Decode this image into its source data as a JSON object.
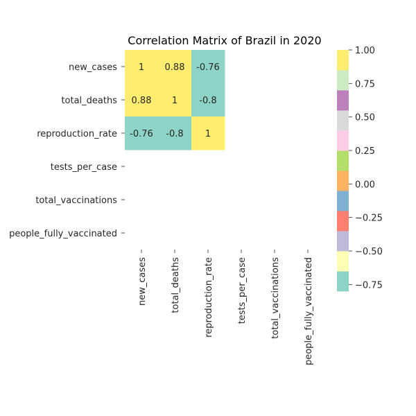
{
  "chart_data": {
    "type": "heatmap",
    "title": "Correlation Matrix of Brazil in 2020",
    "row_labels": [
      "new_cases",
      "total_deaths",
      "reproduction_rate",
      "tests_per_case",
      "total_vaccinations",
      "people_fully_vaccinated"
    ],
    "col_labels": [
      "new_cases",
      "total_deaths",
      "reproduction_rate",
      "tests_per_case",
      "total_vaccinations",
      "people_fully_vaccinated"
    ],
    "values": [
      [
        1,
        0.88,
        -0.76,
        null,
        null,
        null
      ],
      [
        0.88,
        1,
        -0.8,
        null,
        null,
        null
      ],
      [
        -0.76,
        -0.8,
        1,
        null,
        null,
        null
      ],
      [
        null,
        null,
        null,
        null,
        null,
        null
      ],
      [
        null,
        null,
        null,
        null,
        null,
        null
      ],
      [
        null,
        null,
        null,
        null,
        null,
        null
      ]
    ],
    "annotations": [
      [
        "1",
        "0.88",
        "-0.76",
        "",
        "",
        ""
      ],
      [
        "0.88",
        "1",
        "-0.8",
        "",
        "",
        ""
      ],
      [
        "-0.76",
        "-0.8",
        "1",
        "",
        "",
        ""
      ],
      [
        "",
        "",
        "",
        "",
        "",
        ""
      ],
      [
        "",
        "",
        "",
        "",
        "",
        ""
      ],
      [
        "",
        "",
        "",
        "",
        "",
        ""
      ]
    ],
    "colorbar": {
      "vmin": -0.8,
      "vmax": 1.0,
      "ticks": [
        1.0,
        0.75,
        0.5,
        0.25,
        0.0,
        -0.25,
        -0.5,
        -0.75
      ],
      "tick_labels": [
        "1.00",
        "0.75",
        "0.50",
        "0.25",
        "0.00",
        "−0.25",
        "−0.50",
        "−0.75"
      ],
      "palette": [
        "#8dd3c7",
        "#ffffb3",
        "#bebada",
        "#fb8072",
        "#80b1d3",
        "#fdb462",
        "#b3de69",
        "#fccde5",
        "#d9d9d9",
        "#bc80bd",
        "#ccebc5",
        "#ffed6f"
      ]
    },
    "grid": false
  }
}
